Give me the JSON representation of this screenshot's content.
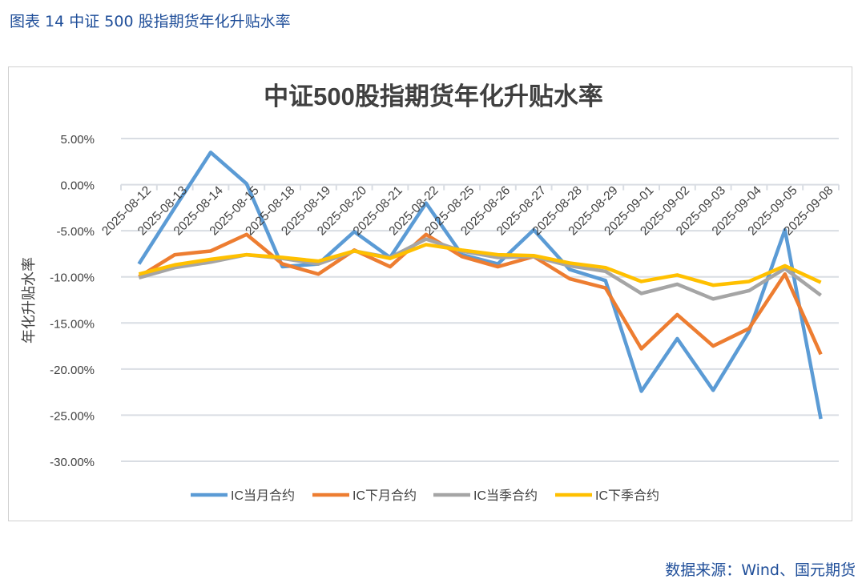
{
  "caption": "图表 14 中证 500 股指期货年化升贴水率",
  "source": "数据来源：Wind、国元期货",
  "chart_data": {
    "type": "line",
    "title": "中证500股指期货年化升贴水率",
    "ylabel": "年化升贴水率",
    "xlabel": "",
    "ylim": [
      -30,
      5
    ],
    "yticks": [
      "5.00%",
      "0.00%",
      "-5.00%",
      "-10.00%",
      "-15.00%",
      "-20.00%",
      "-25.00%",
      "-30.00%"
    ],
    "grid": true,
    "legend": "bottom",
    "categories": [
      "2025-08-12",
      "2025-08-13",
      "2025-08-14",
      "2025-08-15",
      "2025-08-18",
      "2025-08-19",
      "2025-08-20",
      "2025-08-21",
      "2025-08-22",
      "2025-08-25",
      "2025-08-26",
      "2025-08-27",
      "2025-08-28",
      "2025-08-29",
      "2025-09-01",
      "2025-09-02",
      "2025-09-03",
      "2025-09-04",
      "2025-09-05",
      "2025-09-08"
    ],
    "series": [
      {
        "name": "IC当月合约",
        "color": "#5b9bd5",
        "values": [
          -8.6,
          -2.5,
          3.5,
          0.1,
          -8.9,
          -8.6,
          -5.1,
          -7.9,
          -2.0,
          -7.6,
          -8.6,
          -4.9,
          -9.2,
          -10.4,
          -22.4,
          -16.7,
          -22.3,
          -15.9,
          -4.9,
          -25.4
        ]
      },
      {
        "name": "IC下月合约",
        "color": "#ed7d31",
        "values": [
          -10.0,
          -7.6,
          -7.2,
          -5.4,
          -8.6,
          -9.7,
          -7.1,
          -8.9,
          -5.4,
          -7.8,
          -8.9,
          -7.8,
          -10.2,
          -11.2,
          -17.8,
          -14.1,
          -17.5,
          -15.6,
          -9.7,
          -18.4
        ]
      },
      {
        "name": "IC当季合约",
        "color": "#a5a5a5",
        "values": [
          -10.1,
          -9.0,
          -8.4,
          -7.6,
          -8.0,
          -8.6,
          -7.2,
          -7.9,
          -5.9,
          -7.2,
          -7.9,
          -7.8,
          -8.8,
          -9.4,
          -11.8,
          -10.8,
          -12.4,
          -11.5,
          -9.1,
          -12.0
        ]
      },
      {
        "name": "IC下季合约",
        "color": "#ffc000",
        "values": [
          -9.7,
          -8.7,
          -8.1,
          -7.6,
          -7.9,
          -8.3,
          -7.2,
          -8.0,
          -6.5,
          -7.1,
          -7.6,
          -7.7,
          -8.5,
          -9.0,
          -10.5,
          -9.8,
          -10.9,
          -10.5,
          -8.8,
          -10.6
        ]
      }
    ]
  }
}
